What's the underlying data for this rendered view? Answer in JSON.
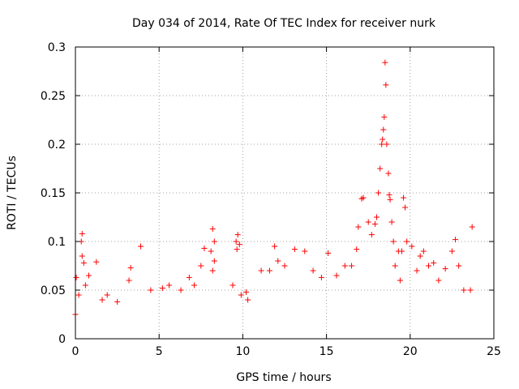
{
  "chart_data": {
    "type": "scatter",
    "title": "Day 034 of 2014, Rate Of TEC Index for receiver nurk",
    "xlabel": "GPS time / hours",
    "ylabel": "ROTI / TECUs",
    "xlim": [
      0,
      25
    ],
    "ylim": [
      0,
      0.3
    ],
    "xticks": [
      0,
      5,
      10,
      15,
      20,
      25
    ],
    "yticks": [
      0,
      0.05,
      0.1,
      0.15,
      0.2,
      0.25,
      0.3
    ],
    "xtick_labels": [
      "0",
      "5",
      "10",
      "15",
      "20",
      "25"
    ],
    "ytick_labels": [
      "0",
      "0.05",
      "0.1",
      "0.15",
      "0.2",
      "0.25",
      "0.3"
    ],
    "grid": true,
    "marker": "+",
    "color": "#ff0000",
    "series": [
      {
        "name": "ROTI",
        "points": [
          [
            0.0,
            0.025
          ],
          [
            0.05,
            0.063
          ],
          [
            0.2,
            0.045
          ],
          [
            0.35,
            0.1
          ],
          [
            0.4,
            0.108
          ],
          [
            0.4,
            0.085
          ],
          [
            0.5,
            0.078
          ],
          [
            0.6,
            0.055
          ],
          [
            0.8,
            0.065
          ],
          [
            1.25,
            0.079
          ],
          [
            1.6,
            0.04
          ],
          [
            1.9,
            0.045
          ],
          [
            2.5,
            0.038
          ],
          [
            3.2,
            0.06
          ],
          [
            3.3,
            0.073
          ],
          [
            3.9,
            0.095
          ],
          [
            4.5,
            0.05
          ],
          [
            5.2,
            0.052
          ],
          [
            5.6,
            0.055
          ],
          [
            6.3,
            0.05
          ],
          [
            6.8,
            0.063
          ],
          [
            7.1,
            0.055
          ],
          [
            7.5,
            0.075
          ],
          [
            7.7,
            0.093
          ],
          [
            8.1,
            0.09
          ],
          [
            8.2,
            0.113
          ],
          [
            8.3,
            0.1
          ],
          [
            8.2,
            0.07
          ],
          [
            8.3,
            0.08
          ],
          [
            9.6,
            0.1
          ],
          [
            9.7,
            0.107
          ],
          [
            9.8,
            0.097
          ],
          [
            9.65,
            0.092
          ],
          [
            9.4,
            0.055
          ],
          [
            9.9,
            0.045
          ],
          [
            10.2,
            0.048
          ],
          [
            10.3,
            0.04
          ],
          [
            11.1,
            0.07
          ],
          [
            11.6,
            0.07
          ],
          [
            11.9,
            0.095
          ],
          [
            12.1,
            0.08
          ],
          [
            12.5,
            0.075
          ],
          [
            13.1,
            0.092
          ],
          [
            13.7,
            0.09
          ],
          [
            14.2,
            0.07
          ],
          [
            14.7,
            0.063
          ],
          [
            15.1,
            0.088
          ],
          [
            15.6,
            0.065
          ],
          [
            16.1,
            0.075
          ],
          [
            16.5,
            0.075
          ],
          [
            16.8,
            0.092
          ],
          [
            16.9,
            0.115
          ],
          [
            17.1,
            0.144
          ],
          [
            17.2,
            0.145
          ],
          [
            17.5,
            0.12
          ],
          [
            17.7,
            0.107
          ],
          [
            17.9,
            0.118
          ],
          [
            18.0,
            0.125
          ],
          [
            18.1,
            0.15
          ],
          [
            18.2,
            0.175
          ],
          [
            18.3,
            0.2
          ],
          [
            18.35,
            0.205
          ],
          [
            18.4,
            0.215
          ],
          [
            18.45,
            0.228
          ],
          [
            18.5,
            0.284
          ],
          [
            18.55,
            0.261
          ],
          [
            18.6,
            0.2
          ],
          [
            18.7,
            0.17
          ],
          [
            18.75,
            0.148
          ],
          [
            18.8,
            0.143
          ],
          [
            18.9,
            0.12
          ],
          [
            19.0,
            0.1
          ],
          [
            19.1,
            0.075
          ],
          [
            19.3,
            0.09
          ],
          [
            19.4,
            0.06
          ],
          [
            19.5,
            0.09
          ],
          [
            19.6,
            0.145
          ],
          [
            19.7,
            0.135
          ],
          [
            19.8,
            0.1
          ],
          [
            20.1,
            0.095
          ],
          [
            20.4,
            0.07
          ],
          [
            20.6,
            0.085
          ],
          [
            20.8,
            0.09
          ],
          [
            21.1,
            0.075
          ],
          [
            21.4,
            0.078
          ],
          [
            21.7,
            0.06
          ],
          [
            22.1,
            0.072
          ],
          [
            22.5,
            0.09
          ],
          [
            22.7,
            0.102
          ],
          [
            22.9,
            0.075
          ],
          [
            23.2,
            0.05
          ],
          [
            23.6,
            0.05
          ],
          [
            23.7,
            0.115
          ]
        ]
      }
    ]
  }
}
